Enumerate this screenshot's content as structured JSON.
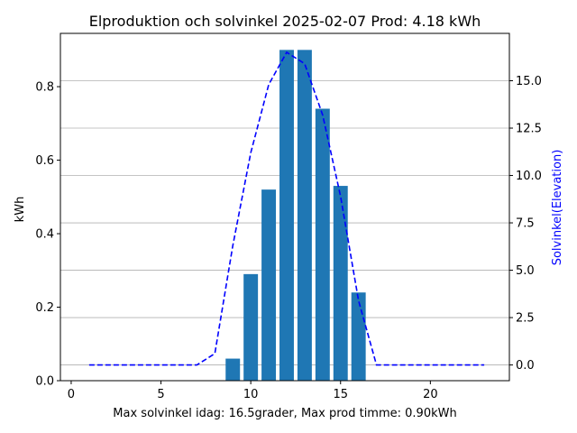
{
  "chart_data": {
    "type": "bar",
    "title": "Elproduktion och solvinkel 2025-02-07 Prod: 4.18 kWh",
    "xlabel": "Max solvinkel idag: 16.5grader, Max prod timme: 0.90kWh",
    "ylabel": "kWh",
    "y2label": "Solvinkel(Elevation)",
    "xlim": [
      -0.6,
      24.4
    ],
    "ylim": [
      0,
      0.945
    ],
    "y2lim": [
      -0.83,
      17.5
    ],
    "xticks": [
      0,
      5,
      10,
      15,
      20
    ],
    "xtick_labels": [
      "0",
      "5",
      "10",
      "15",
      "20"
    ],
    "yticks": [
      0.0,
      0.2,
      0.4,
      0.6,
      0.8
    ],
    "ytick_labels": [
      "0.0",
      "0.2",
      "0.4",
      "0.6",
      "0.8"
    ],
    "y2ticks": [
      0.0,
      2.5,
      5.0,
      7.5,
      10.0,
      12.5,
      15.0
    ],
    "y2tick_labels": [
      "0.0",
      "2.5",
      "5.0",
      "7.5",
      "10.0",
      "12.5",
      "15.0"
    ],
    "grid": "horizontal gridlines at right-axis ticks",
    "bar_color": "#1f77b4",
    "line_color": "#0000ff",
    "y2label_color": "#0000ff",
    "bars": {
      "x": [
        9,
        10,
        11,
        12,
        13,
        14,
        15,
        16
      ],
      "values": [
        0.06,
        0.29,
        0.52,
        0.9,
        0.9,
        0.74,
        0.53,
        0.24
      ]
    },
    "line": {
      "style": "dashed",
      "x": [
        1,
        2,
        3,
        4,
        5,
        6,
        7,
        8,
        9,
        10,
        11,
        12,
        13,
        14,
        15,
        16,
        17,
        18,
        19,
        20,
        21,
        22,
        23
      ],
      "values": [
        0,
        0,
        0,
        0,
        0,
        0,
        0,
        0.6,
        6.3,
        11.2,
        14.8,
        16.5,
        15.9,
        13.2,
        8.9,
        3.4,
        0,
        0,
        0,
        0,
        0,
        0,
        0
      ]
    }
  }
}
